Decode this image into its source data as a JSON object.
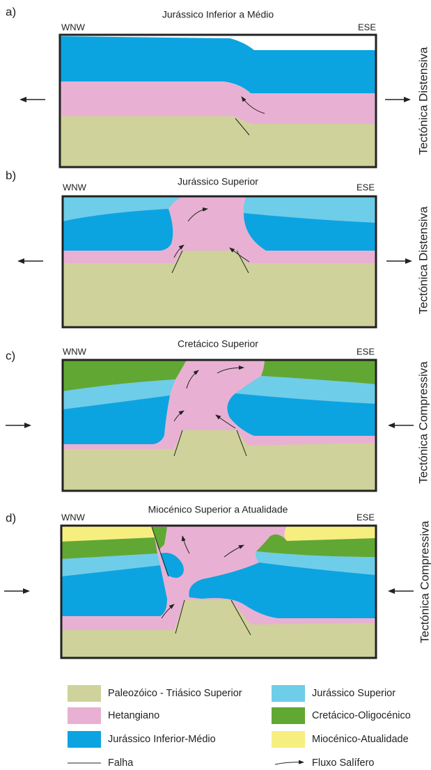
{
  "panels": [
    {
      "label": "a)",
      "title": "Jurássico Inferior a Médio",
      "left": "WNW",
      "right": "ESE",
      "regime": "Tectónica Distensiva"
    },
    {
      "label": "b)",
      "title": "Jurássico Superior",
      "left": "WNW",
      "right": "ESE",
      "regime": "Tectónica Distensiva"
    },
    {
      "label": "c)",
      "title": "Cretácico Superior",
      "left": "WNW",
      "right": "ESE",
      "regime": "Tectónica Compressiva"
    },
    {
      "label": "d)",
      "title": "Miocénico Superior a Atualidade",
      "left": "WNW",
      "right": "ESE",
      "regime": "Tectónica Compressiva"
    }
  ],
  "legend": {
    "items": [
      {
        "label": "Paleozóico - Triásico Superior"
      },
      {
        "label": "Jurássico Superior"
      },
      {
        "label": "Hetangiano"
      },
      {
        "label": "Cretácico-Oligocénico"
      },
      {
        "label": "Jurássico Inferior-Médio"
      },
      {
        "label": "Miocénico-Atualidade"
      },
      {
        "label": "Falha"
      },
      {
        "label": "Fluxo Salífero"
      }
    ]
  }
}
